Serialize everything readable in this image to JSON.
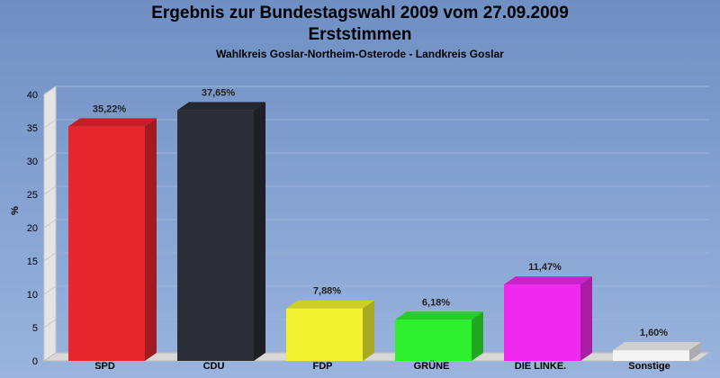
{
  "chart_data": {
    "type": "bar",
    "title": "Ergebnis zur Bundestagswahl 2009 vom 27.09.2009",
    "title_line2": "Erststimmen",
    "subtitle": "Wahlkreis Goslar-Northeim-Osterode - Landkreis Goslar",
    "ylabel": "%",
    "ylim": [
      0,
      40
    ],
    "yticks": [
      "0",
      "5",
      "10",
      "15",
      "20",
      "25",
      "30",
      "35",
      "40"
    ],
    "grid": true,
    "legend": "none",
    "categories": [
      "SPD",
      "CDU",
      "FDP",
      "GRÜNE",
      "DIE LINKE.",
      "Sonstige"
    ],
    "values": [
      35.22,
      37.65,
      7.88,
      6.18,
      11.47,
      1.6
    ],
    "value_labels": [
      "35,22%",
      "37,65%",
      "7,88%",
      "6,18%",
      "11,47%",
      "1,60%"
    ],
    "colors": [
      "#e8262e",
      "#2b2e36",
      "#f2f230",
      "#2ef02e",
      "#f028f0",
      "#f4f4f4"
    ]
  }
}
